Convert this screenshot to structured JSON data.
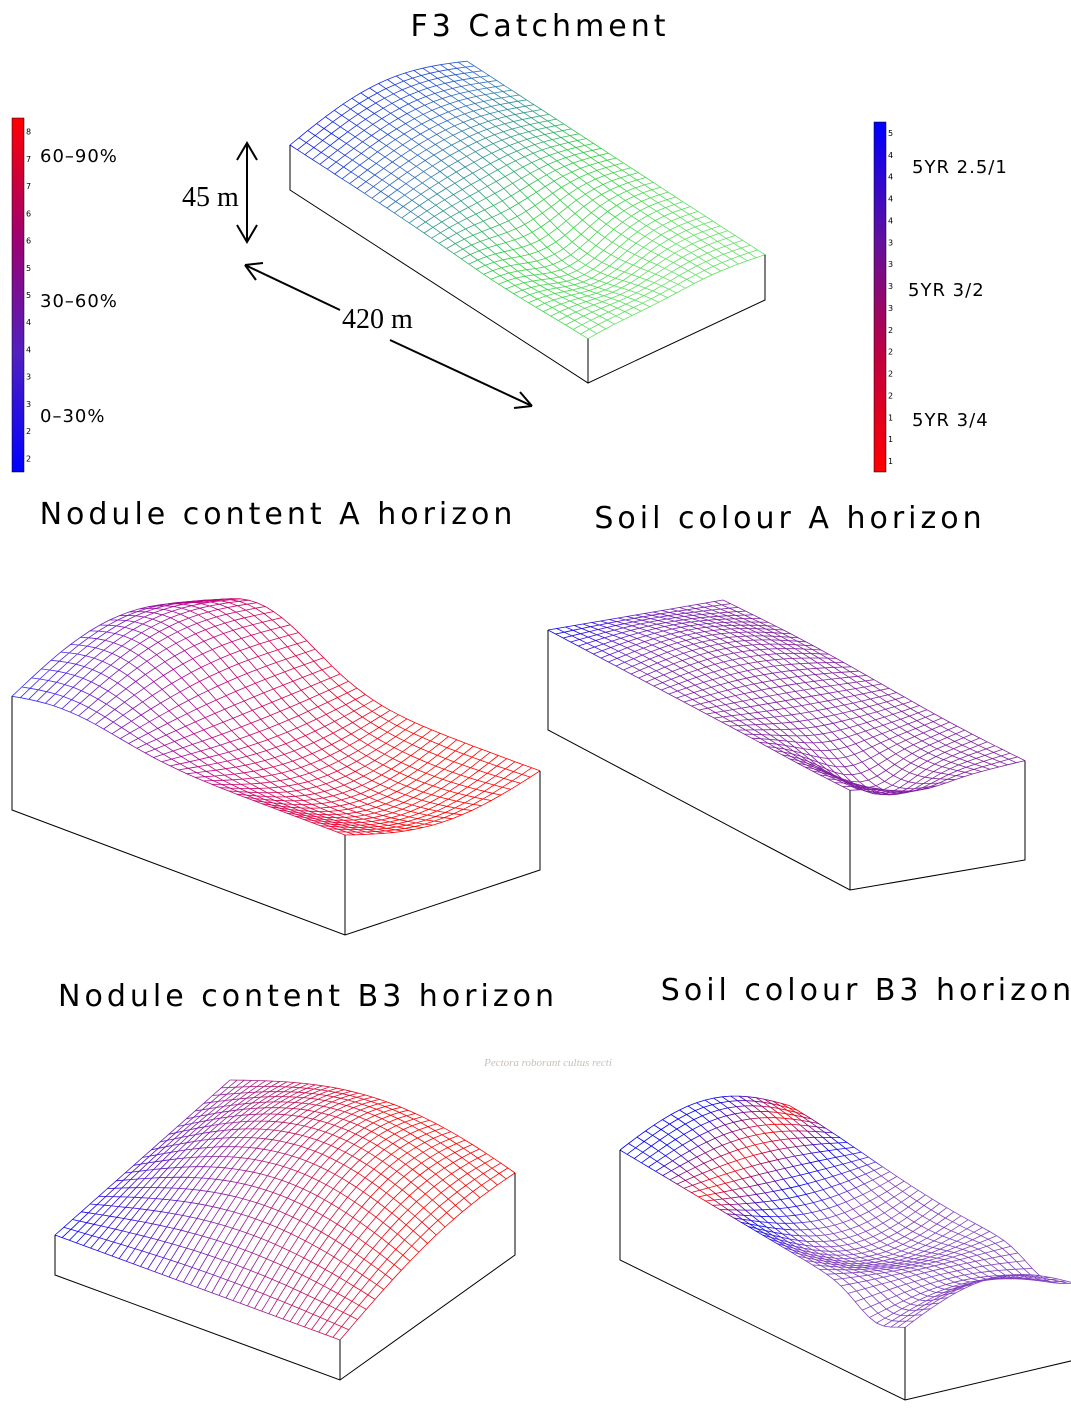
{
  "title": "F3 Catchment",
  "scale": {
    "height": "45 m",
    "length": "420 m"
  },
  "legend_left": {
    "ticks": [
      "8",
      "7",
      "7",
      "6",
      "6",
      "5",
      "5",
      "4",
      "4",
      "3",
      "3",
      "2",
      "2"
    ],
    "labels": [
      "60–90%",
      "30–60%",
      "0–30%"
    ]
  },
  "legend_right": {
    "ticks": [
      "5",
      "4",
      "4",
      "4",
      "4",
      "3",
      "3",
      "3",
      "3",
      "2",
      "2",
      "2",
      "2",
      "1",
      "1",
      "1"
    ],
    "labels": [
      "5YR 2.5/1",
      "5YR 3/2",
      "5YR 3/4"
    ]
  },
  "panels": [
    {
      "title": "Nodule content A horizon"
    },
    {
      "title": "Soil colour A horizon"
    },
    {
      "title": "Nodule content B3 horizon"
    },
    {
      "title": "Soil colour B3 horizon"
    }
  ],
  "watermark": "Pectora roborant cultus recti"
}
